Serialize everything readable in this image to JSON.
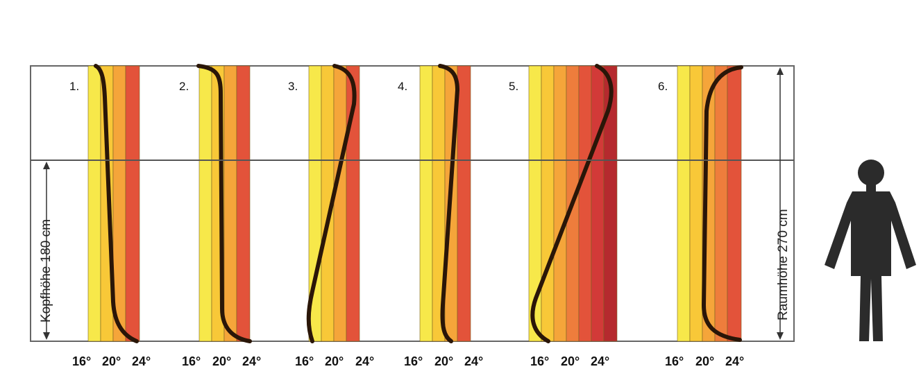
{
  "panels": [
    {
      "number": "1.",
      "ticks": [
        "16°",
        "20°",
        "24°"
      ]
    },
    {
      "number": "2.",
      "ticks": [
        "16°",
        "20°",
        "24°"
      ]
    },
    {
      "number": "3.",
      "ticks": [
        "16°",
        "20°",
        "24°"
      ]
    },
    {
      "number": "4.",
      "ticks": [
        "16°",
        "20°",
        "24°"
      ]
    },
    {
      "number": "5.",
      "ticks": [
        "16°",
        "20°",
        "24°"
      ]
    },
    {
      "number": "6.",
      "ticks": [
        "16°",
        "20°",
        "24°"
      ]
    }
  ],
  "labels": {
    "head_height": "Kopfhöhe 180 cm",
    "room_height": "Raumhöhe 270 cm"
  },
  "colors": {
    "band_colors": [
      "#f7e84a",
      "#f8c838",
      "#f5a53a",
      "#ee7d3c",
      "#e3533a",
      "#d23a38",
      "#b52a2e"
    ],
    "curve": "#2a1608",
    "frame": "#666666",
    "person": "#2b2b2b"
  },
  "icons": {
    "person": "person-silhouette-icon"
  }
}
